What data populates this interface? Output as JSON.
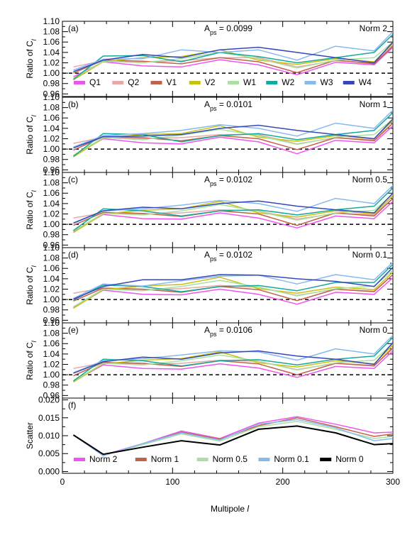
{
  "figure": {
    "xlabel": "Multipole l",
    "xlim": [
      0,
      300
    ],
    "xticks": [
      0,
      100,
      200,
      300
    ]
  },
  "chart_data": [
    {
      "type": "line",
      "panel": "(a)",
      "annotation": "A_ps = 0.0099",
      "norm_label": "Norm 2",
      "ylabel": "Ratio of C_l",
      "ylim": [
        0.955,
        1.1
      ],
      "yticks": [
        "0.96",
        "0.98",
        "1.00",
        "1.02",
        "1.04",
        "1.06",
        "1.08",
        "1.10"
      ],
      "reference_line": 1.0,
      "x": [
        10,
        37,
        73,
        108,
        143,
        178,
        213,
        248,
        283,
        300
      ],
      "series": [
        {
          "name": "Q1",
          "color": "#ee55ee",
          "values": [
            0.993,
            1.022,
            1.014,
            1.012,
            1.026,
            1.016,
            0.997,
            1.021,
            1.016,
            1.05
          ]
        },
        {
          "name": "Q2",
          "color": "#e8a8a8",
          "values": [
            1.012,
            1.024,
            1.022,
            1.024,
            1.03,
            1.03,
            1.012,
            1.024,
            1.02,
            1.055
          ]
        },
        {
          "name": "V1",
          "color": "#c0624a",
          "values": [
            1.0,
            1.025,
            1.023,
            1.018,
            1.03,
            1.022,
            1.001,
            1.025,
            1.018,
            1.052
          ]
        },
        {
          "name": "V2",
          "color": "#c8c012",
          "values": [
            0.987,
            1.022,
            1.03,
            1.032,
            1.045,
            1.025,
            1.017,
            1.028,
            1.022,
            1.058
          ]
        },
        {
          "name": "W1",
          "color": "#a8e0a0",
          "values": [
            0.99,
            1.023,
            1.02,
            1.028,
            1.04,
            1.028,
            1.01,
            1.025,
            1.03,
            1.06
          ]
        },
        {
          "name": "W2",
          "color": "#16a89a",
          "values": [
            0.988,
            1.033,
            1.034,
            1.022,
            1.04,
            1.032,
            1.02,
            1.03,
            1.04,
            1.075
          ]
        },
        {
          "name": "W3",
          "color": "#88b8f0",
          "values": [
            1.006,
            1.027,
            1.028,
            1.045,
            1.04,
            1.045,
            1.025,
            1.052,
            1.043,
            1.08
          ]
        },
        {
          "name": "W4",
          "color": "#3648b8",
          "values": [
            1.003,
            1.025,
            1.036,
            1.03,
            1.045,
            1.05,
            1.04,
            1.03,
            1.02,
            1.06
          ]
        }
      ],
      "legend": {
        "placement": "bottom",
        "show": true
      }
    },
    {
      "type": "line",
      "panel": "(b)",
      "annotation": "A_ps = 0.0101",
      "norm_label": "Norm 1",
      "ylabel": "Ratio of C_l",
      "ylim": [
        0.955,
        1.1
      ],
      "yticks": [
        "0.96",
        "0.98",
        "1.00",
        "1.02",
        "1.04",
        "1.06",
        "1.08",
        "1.10"
      ],
      "reference_line": 1.0,
      "x": [
        10,
        37,
        73,
        108,
        143,
        178,
        213,
        248,
        283,
        300
      ],
      "series": [
        {
          "name": "Q1",
          "color": "#ee55ee",
          "values": [
            0.988,
            1.02,
            1.012,
            1.01,
            1.023,
            1.014,
            0.991,
            1.017,
            1.012,
            1.045
          ]
        },
        {
          "name": "Q2",
          "color": "#e8a8a8",
          "values": [
            1.011,
            1.023,
            1.02,
            1.022,
            1.028,
            1.028,
            1.01,
            1.022,
            1.018,
            1.05
          ]
        },
        {
          "name": "V1",
          "color": "#c0624a",
          "values": [
            0.998,
            1.024,
            1.022,
            1.016,
            1.026,
            1.02,
            0.999,
            1.022,
            1.016,
            1.05
          ]
        },
        {
          "name": "V2",
          "color": "#c8c012",
          "values": [
            0.985,
            1.021,
            1.028,
            1.03,
            1.045,
            1.023,
            1.015,
            1.026,
            1.02,
            1.055
          ]
        },
        {
          "name": "W1",
          "color": "#a8e0a0",
          "values": [
            0.988,
            1.022,
            1.018,
            1.027,
            1.038,
            1.026,
            1.009,
            1.023,
            1.028,
            1.058
          ]
        },
        {
          "name": "W2",
          "color": "#16a89a",
          "values": [
            0.986,
            1.03,
            1.028,
            1.014,
            1.026,
            1.03,
            1.018,
            1.028,
            1.036,
            1.07
          ]
        },
        {
          "name": "W3",
          "color": "#88b8f0",
          "values": [
            1.004,
            1.026,
            1.03,
            1.036,
            1.047,
            1.04,
            1.025,
            1.05,
            1.04,
            1.075
          ]
        },
        {
          "name": "W4",
          "color": "#3648b8",
          "values": [
            1.002,
            1.024,
            1.025,
            1.028,
            1.04,
            1.046,
            1.036,
            1.028,
            1.02,
            1.058
          ]
        }
      ],
      "legend": {
        "show": false
      }
    },
    {
      "type": "line",
      "panel": "(c)",
      "annotation": "A_ps = 0.0102",
      "norm_label": "Norm 0.5",
      "ylabel": "Ratio of C_l",
      "ylim": [
        0.955,
        1.1
      ],
      "yticks": [
        "0.96",
        "0.98",
        "1.00",
        "1.02",
        "1.04",
        "1.06",
        "1.08",
        "1.10"
      ],
      "reference_line": 1.0,
      "x": [
        10,
        37,
        73,
        108,
        143,
        178,
        213,
        248,
        283,
        300
      ],
      "series": [
        {
          "name": "Q1",
          "color": "#ee55ee",
          "values": [
            0.986,
            1.019,
            1.011,
            1.01,
            1.022,
            1.012,
            0.993,
            1.016,
            1.011,
            1.044
          ]
        },
        {
          "name": "Q2",
          "color": "#e8a8a8",
          "values": [
            1.012,
            1.022,
            1.02,
            1.022,
            1.028,
            1.026,
            1.01,
            1.021,
            1.018,
            1.05
          ]
        },
        {
          "name": "V1",
          "color": "#c0624a",
          "values": [
            0.998,
            1.023,
            1.021,
            1.015,
            1.026,
            1.02,
            0.998,
            1.022,
            1.016,
            1.05
          ]
        },
        {
          "name": "V2",
          "color": "#c8c012",
          "values": [
            0.984,
            1.02,
            1.027,
            1.03,
            1.044,
            1.022,
            1.014,
            1.026,
            1.02,
            1.055
          ]
        },
        {
          "name": "W1",
          "color": "#a8e0a0",
          "values": [
            0.987,
            1.021,
            1.018,
            1.026,
            1.038,
            1.025,
            1.008,
            1.022,
            1.027,
            1.058
          ]
        },
        {
          "name": "W2",
          "color": "#16a89a",
          "values": [
            0.988,
            1.03,
            1.026,
            1.016,
            1.026,
            1.028,
            1.018,
            1.028,
            1.035,
            1.07
          ]
        },
        {
          "name": "W3",
          "color": "#88b8f0",
          "values": [
            1.003,
            1.026,
            1.03,
            1.037,
            1.046,
            1.04,
            1.025,
            1.05,
            1.04,
            1.075
          ]
        },
        {
          "name": "W4",
          "color": "#3648b8",
          "values": [
            1.002,
            1.026,
            1.033,
            1.03,
            1.04,
            1.045,
            1.035,
            1.028,
            1.022,
            1.06
          ]
        }
      ],
      "legend": {
        "show": false
      }
    },
    {
      "type": "line",
      "panel": "(d)",
      "annotation": "A_ps = 0.0102",
      "norm_label": "Norm 0.1",
      "ylabel": "Ratio of C_l",
      "ylim": [
        0.955,
        1.1
      ],
      "yticks": [
        "0.96",
        "0.98",
        "1.00",
        "1.02",
        "1.04",
        "1.06",
        "1.08",
        "1.10"
      ],
      "reference_line": 1.0,
      "x": [
        10,
        37,
        73,
        108,
        143,
        178,
        213,
        248,
        283,
        300
      ],
      "series": [
        {
          "name": "Q1",
          "color": "#ee55ee",
          "values": [
            0.984,
            1.018,
            1.01,
            1.009,
            1.02,
            1.01,
            0.991,
            1.014,
            1.01,
            1.042
          ]
        },
        {
          "name": "Q2",
          "color": "#e8a8a8",
          "values": [
            1.012,
            1.022,
            1.019,
            1.021,
            1.027,
            1.024,
            1.008,
            1.02,
            1.016,
            1.048
          ]
        },
        {
          "name": "V1",
          "color": "#c0624a",
          "values": [
            0.997,
            1.022,
            1.02,
            1.014,
            1.025,
            1.019,
            0.998,
            1.02,
            1.015,
            1.048
          ]
        },
        {
          "name": "V2",
          "color": "#c8c012",
          "values": [
            0.983,
            1.019,
            1.026,
            1.029,
            1.043,
            1.021,
            1.012,
            1.024,
            1.019,
            1.053
          ]
        },
        {
          "name": "W1",
          "color": "#a8e0a0",
          "values": [
            0.986,
            1.02,
            1.017,
            1.025,
            1.037,
            1.024,
            1.007,
            1.021,
            1.026,
            1.056
          ]
        },
        {
          "name": "W2",
          "color": "#16a89a",
          "values": [
            0.999,
            1.028,
            1.025,
            1.015,
            1.025,
            1.027,
            1.017,
            1.033,
            1.033,
            1.068
          ]
        },
        {
          "name": "W3",
          "color": "#88b8f0",
          "values": [
            1.002,
            1.03,
            1.026,
            1.036,
            1.045,
            1.047,
            1.03,
            1.048,
            1.038,
            1.072
          ]
        },
        {
          "name": "W4",
          "color": "#3648b8",
          "values": [
            1.001,
            1.025,
            1.038,
            1.038,
            1.048,
            1.047,
            1.04,
            1.035,
            1.025,
            1.062
          ]
        }
      ],
      "legend": {
        "show": false
      }
    },
    {
      "type": "line",
      "panel": "(e)",
      "annotation": "A_ps = 0.0106",
      "norm_label": "Norm 0",
      "ylabel": "Ratio of C_l",
      "ylim": [
        0.955,
        1.1
      ],
      "yticks": [
        "0.96",
        "0.98",
        "1.00",
        "1.02",
        "1.04",
        "1.06",
        "1.08",
        "1.10"
      ],
      "reference_line": 1.0,
      "x": [
        10,
        37,
        73,
        108,
        143,
        178,
        213,
        248,
        283,
        300
      ],
      "series": [
        {
          "name": "Q1",
          "color": "#ee55ee",
          "values": [
            0.987,
            1.019,
            1.012,
            1.011,
            1.021,
            1.013,
            0.995,
            1.016,
            1.012,
            1.046
          ]
        },
        {
          "name": "Q2",
          "color": "#e8a8a8",
          "values": [
            1.012,
            1.023,
            1.02,
            1.022,
            1.028,
            1.026,
            1.01,
            1.022,
            1.018,
            1.05
          ]
        },
        {
          "name": "V1",
          "color": "#c0624a",
          "values": [
            0.998,
            1.024,
            1.022,
            1.016,
            1.027,
            1.021,
            1.0,
            1.022,
            1.017,
            1.052
          ]
        },
        {
          "name": "V2",
          "color": "#c8c012",
          "values": [
            0.986,
            1.021,
            1.028,
            1.031,
            1.044,
            1.023,
            1.015,
            1.027,
            1.021,
            1.057
          ]
        },
        {
          "name": "W1",
          "color": "#a8e0a0",
          "values": [
            0.988,
            1.022,
            1.019,
            1.027,
            1.038,
            1.026,
            1.009,
            1.023,
            1.028,
            1.06
          ]
        },
        {
          "name": "W2",
          "color": "#16a89a",
          "values": [
            0.988,
            1.03,
            1.027,
            1.017,
            1.027,
            1.029,
            1.019,
            1.03,
            1.036,
            1.072
          ]
        },
        {
          "name": "W3",
          "color": "#88b8f0",
          "values": [
            1.004,
            1.027,
            1.031,
            1.038,
            1.046,
            1.044,
            1.028,
            1.05,
            1.04,
            1.076
          ]
        },
        {
          "name": "W4",
          "color": "#3648b8",
          "values": [
            1.003,
            1.025,
            1.034,
            1.03,
            1.042,
            1.046,
            1.036,
            1.03,
            1.02,
            1.062
          ]
        }
      ],
      "legend": {
        "show": false
      }
    },
    {
      "type": "line",
      "panel": "(f)",
      "ylabel": "Scatter",
      "ylim": [
        -0.0005,
        0.0205
      ],
      "yticks": [
        "0.000",
        "0.005",
        "0.010",
        "0.015",
        "0.020"
      ],
      "x": [
        10,
        37,
        73,
        108,
        143,
        178,
        213,
        248,
        283,
        300
      ],
      "series": [
        {
          "name": "Norm 2",
          "color": "#ee55ee",
          "values": [
            0.0102,
            0.0046,
            0.0078,
            0.0113,
            0.0092,
            0.0135,
            0.0153,
            0.0132,
            0.0108,
            0.011
          ]
        },
        {
          "name": "Norm 1",
          "color": "#c0624a",
          "values": [
            0.0102,
            0.0045,
            0.0077,
            0.011,
            0.009,
            0.0128,
            0.015,
            0.0125,
            0.0098,
            0.0105
          ]
        },
        {
          "name": "Norm 0.5",
          "color": "#a8e0a0",
          "values": [
            0.0102,
            0.0045,
            0.0075,
            0.0105,
            0.0085,
            0.0125,
            0.014,
            0.0118,
            0.0092,
            0.0098
          ]
        },
        {
          "name": "Norm 0.1",
          "color": "#88b8f0",
          "values": [
            0.0102,
            0.0044,
            0.0078,
            0.0108,
            0.0088,
            0.0132,
            0.0145,
            0.0122,
            0.0086,
            0.0092
          ]
        },
        {
          "name": "Norm 0",
          "color": "#000000",
          "values": [
            0.0102,
            0.0048,
            0.0068,
            0.0086,
            0.0074,
            0.0118,
            0.0127,
            0.0108,
            0.0075,
            0.0078
          ]
        }
      ],
      "legend": {
        "placement": "bottom",
        "show": true
      }
    }
  ]
}
